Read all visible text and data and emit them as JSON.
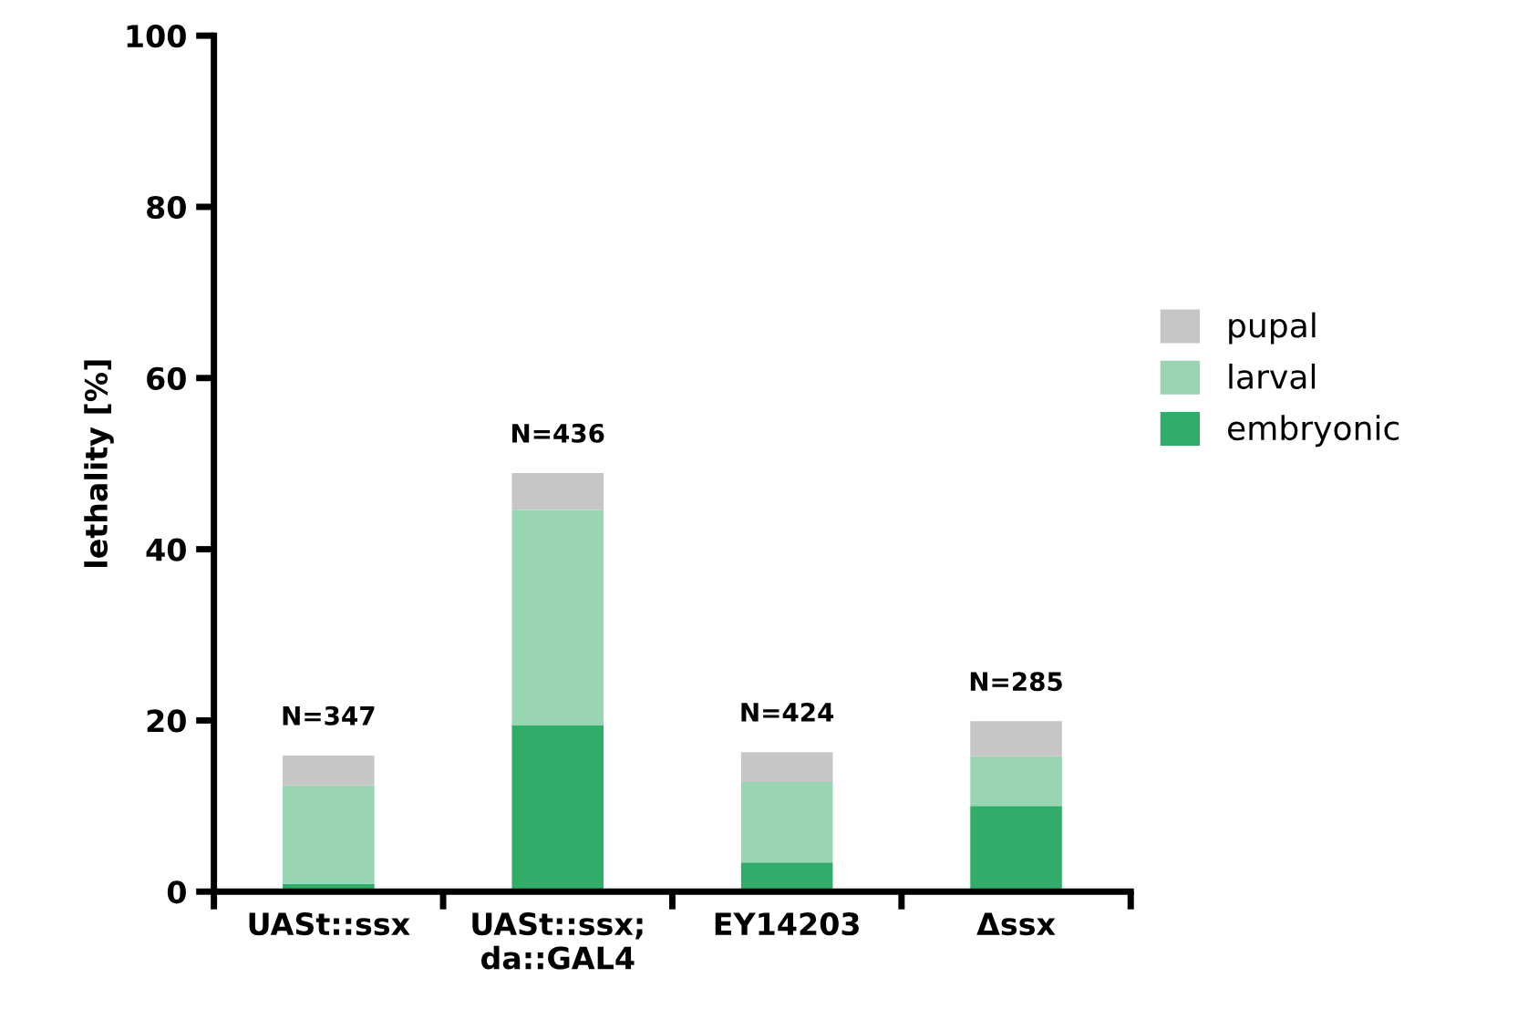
{
  "chart_data": {
    "type": "bar",
    "stacked": true,
    "ylabel": "lethality [%]",
    "categories": [
      "UASt::ssx",
      "UASt::ssx;\nda::GAL4",
      "EY14203",
      "Δssx"
    ],
    "series": [
      {
        "name": "embryonic",
        "color": "#32ad69",
        "values": [
          0.9,
          19.4,
          3.4,
          10.0
        ]
      },
      {
        "name": "larval",
        "color": "#99d5b2",
        "values": [
          11.5,
          25.2,
          9.4,
          5.8
        ]
      },
      {
        "name": "pupal",
        "color": "#c6c6c6",
        "values": [
          3.5,
          4.3,
          3.5,
          4.1
        ]
      }
    ],
    "annotations": [
      {
        "text": "N=347",
        "x": "UASt::ssx",
        "y": 15.9
      },
      {
        "text": "N=436",
        "x": "UASt::ssx;\nda::GAL4",
        "y": 48.9
      },
      {
        "text": "N=424",
        "x": "EY14203",
        "y": 16.3
      },
      {
        "text": "N=285",
        "x": "Δssx",
        "y": 19.9
      }
    ],
    "ylim": [
      0,
      100
    ],
    "yticks": [
      0,
      20,
      40,
      60,
      80,
      100
    ],
    "grid": false,
    "legend": "right"
  }
}
